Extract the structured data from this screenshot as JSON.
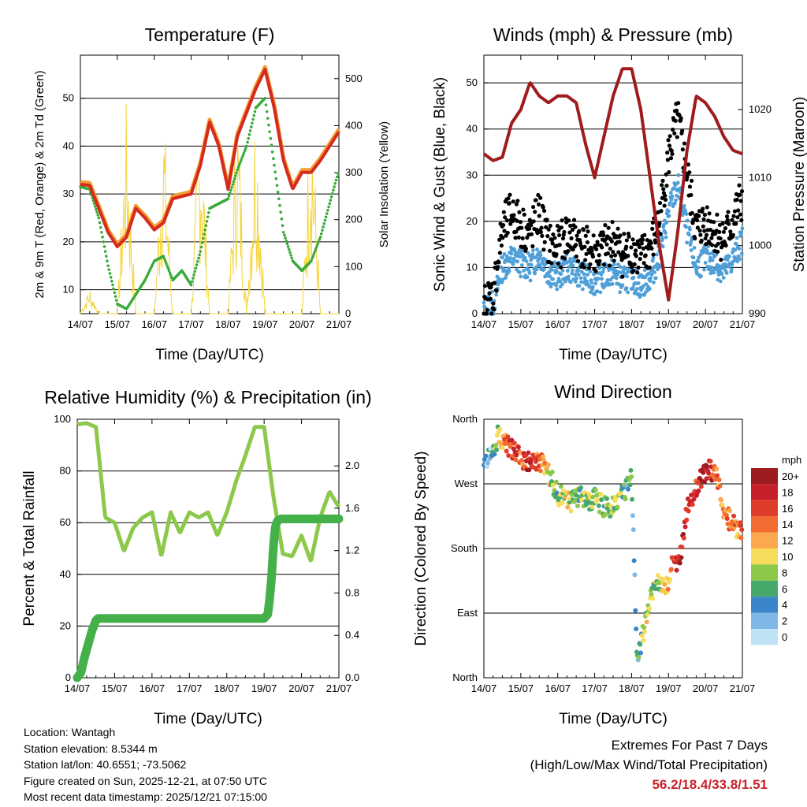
{
  "chart_data": [
    {
      "id": "temperature",
      "type": "line",
      "title": "Temperature (F)",
      "xlabel": "Time (Day/UTC)",
      "ylabel_left": "2m & 9m T (Red, Orange) & 2m Td (Green)",
      "ylabel_right": "Solar Insolation (Yellow)",
      "x_ticks": [
        "14/07",
        "15/07",
        "16/07",
        "17/07",
        "18/07",
        "19/07",
        "20/07",
        "21/07"
      ],
      "ylim_left": [
        5,
        59
      ],
      "ylim_right": [
        0,
        550
      ],
      "yticks_left": [
        10,
        20,
        30,
        40,
        50
      ],
      "yticks_right": [
        0,
        100,
        200,
        300,
        400,
        500
      ],
      "gridlines": [
        10,
        20,
        30,
        40,
        50
      ],
      "colors": {
        "t2m": "#d62a1f",
        "t9m": "#f39c2f",
        "td": "#3aaa3a",
        "solar": "#f5d53c"
      },
      "x": [
        0.0,
        0.25,
        0.5,
        0.75,
        1.0,
        1.25,
        1.5,
        1.75,
        2.0,
        2.25,
        2.5,
        2.75,
        3.0,
        3.25,
        3.5,
        3.75,
        4.0,
        4.25,
        4.5,
        4.75,
        5.0,
        5.25,
        5.5,
        5.75,
        6.0,
        6.25,
        6.5,
        6.75,
        7.0
      ],
      "series": [
        {
          "name": "2m T",
          "axis": "left",
          "values": [
            32,
            31.8,
            27,
            22,
            19,
            21,
            27,
            25,
            22.5,
            24,
            29,
            29.5,
            30,
            36,
            45,
            40,
            31,
            42,
            47,
            52,
            56,
            48,
            37,
            31,
            34.5,
            34.5,
            37,
            40,
            43
          ]
        },
        {
          "name": "9m T",
          "axis": "left",
          "values": [
            32.5,
            32.3,
            27.5,
            22.5,
            19.5,
            21.5,
            27.5,
            25.5,
            23,
            24.5,
            29.5,
            30,
            30.5,
            36.5,
            45.5,
            40.5,
            31.5,
            42.5,
            47.5,
            52.5,
            56.5,
            48.5,
            37.5,
            31.5,
            35,
            35,
            37.5,
            40.5,
            43.5
          ]
        },
        {
          "name": "2m Td",
          "axis": "left",
          "values": [
            31.5,
            31,
            25,
            15,
            7,
            6,
            9,
            12,
            16,
            17,
            12,
            14,
            11,
            18,
            27,
            28,
            29,
            35,
            40,
            48,
            50,
            36,
            22,
            16,
            14,
            16,
            21,
            28,
            35
          ]
        },
        {
          "name": "Solar",
          "axis": "right",
          "values": [
            0,
            60,
            0,
            0,
            0,
            470,
            0,
            0,
            0,
            470,
            0,
            0,
            0,
            500,
            0,
            0,
            0,
            490,
            0,
            500,
            0,
            0,
            0,
            0,
            0,
            520,
            0,
            0,
            0
          ]
        }
      ]
    },
    {
      "id": "winds",
      "type": "scatter",
      "title": "Winds (mph) & Pressure (mb)",
      "xlabel": "Time (Day/UTC)",
      "ylabel_left": "Sonic Wind & Gust (Blue, Black)",
      "ylabel_right": "Station Pressure (Maroon)",
      "x_ticks": [
        "14/07",
        "15/07",
        "16/07",
        "17/07",
        "18/07",
        "19/07",
        "20/07",
        "21/07"
      ],
      "ylim_left": [
        0,
        56
      ],
      "ylim_right": [
        990,
        1028
      ],
      "yticks_left": [
        0,
        10,
        20,
        30,
        40,
        50
      ],
      "yticks_right": [
        990,
        1000,
        1010,
        1020
      ],
      "gridlines": [
        10,
        20,
        30,
        40,
        50
      ],
      "colors": {
        "wind": "#4f9fd8",
        "gust": "#000000",
        "pressure": "#a01c1c"
      },
      "x": [
        0.0,
        0.25,
        0.5,
        0.75,
        1.0,
        1.25,
        1.5,
        1.75,
        2.0,
        2.25,
        2.5,
        2.75,
        3.0,
        3.25,
        3.5,
        3.75,
        4.0,
        4.25,
        4.5,
        4.75,
        5.0,
        5.25,
        5.5,
        5.75,
        6.0,
        6.25,
        6.5,
        6.75,
        7.0
      ],
      "series": [
        {
          "name": "Sonic Wind",
          "axis": "left",
          "values": [
            1,
            2,
            10,
            12,
            11,
            10,
            13,
            9,
            8,
            10,
            9,
            8,
            7,
            8,
            9,
            7,
            8,
            6,
            8,
            12,
            22,
            28,
            18,
            10,
            12,
            11,
            9,
            12,
            16
          ]
        },
        {
          "name": "Gust",
          "axis": "left",
          "values": [
            2,
            4,
            18,
            22,
            19,
            17,
            22,
            15,
            14,
            17,
            16,
            14,
            13,
            14,
            16,
            13,
            14,
            12,
            14,
            20,
            34,
            42,
            30,
            18,
            20,
            18,
            16,
            20,
            25
          ]
        },
        {
          "name": "Station Pressure",
          "axis": "right",
          "values": [
            1013.5,
            1012.5,
            1013,
            1018,
            1020,
            1024,
            1022,
            1021,
            1022,
            1022,
            1021,
            1015,
            1010,
            1016,
            1022,
            1026,
            1026,
            1020,
            1010,
            1000,
            992,
            1002,
            1014,
            1022,
            1021,
            1019,
            1016,
            1014,
            1013.5
          ]
        }
      ]
    },
    {
      "id": "humidity",
      "type": "line",
      "title": "Relative Humidity (%) & Precipitation (in)",
      "xlabel": "Time (Day/UTC)",
      "ylabel_left": "Percent & Total Rainfall",
      "x_ticks": [
        "14/07",
        "15/07",
        "16/07",
        "17/07",
        "18/07",
        "19/07",
        "20/07",
        "21/07"
      ],
      "ylim_left": [
        0,
        100
      ],
      "ylim_right": [
        0,
        2.44
      ],
      "yticks_left": [
        0,
        20,
        40,
        60,
        80,
        100
      ],
      "yticks_right": [
        "0.0",
        "0.4",
        "0.8",
        "1.2",
        "1.6",
        "2.0"
      ],
      "gridlines": [
        20,
        40,
        60,
        80
      ],
      "colors": {
        "rh": "#8cc94a",
        "precip": "#44b04a"
      },
      "series": [
        {
          "name": "Relative Humidity",
          "axis": "left",
          "x": [
            0.0,
            0.25,
            0.5,
            0.75,
            1.0,
            1.25,
            1.5,
            1.75,
            2.0,
            2.25,
            2.5,
            2.75,
            3.0,
            3.25,
            3.5,
            3.75,
            4.0,
            4.25,
            4.5,
            4.75,
            5.0,
            5.25,
            5.5,
            5.75,
            6.0,
            6.25,
            6.5,
            6.75,
            7.0
          ],
          "values": [
            98,
            98.5,
            97,
            62,
            60,
            49,
            58,
            62,
            64,
            47,
            64,
            56,
            64,
            62,
            64,
            55,
            64,
            76,
            86,
            97,
            97,
            70,
            48,
            47,
            55,
            45,
            62,
            72,
            66
          ]
        },
        {
          "name": "Total Precipitation",
          "axis": "right",
          "x": [
            0.0,
            0.1,
            0.2,
            0.4,
            0.5,
            0.55,
            5.0,
            5.1,
            5.15,
            5.2,
            5.25,
            5.3,
            5.35,
            5.45,
            7.0
          ],
          "values": [
            0.0,
            0.05,
            0.2,
            0.45,
            0.54,
            0.56,
            0.56,
            0.6,
            0.75,
            0.95,
            1.25,
            1.42,
            1.48,
            1.5,
            1.5
          ]
        }
      ]
    },
    {
      "id": "winddir",
      "type": "scatter",
      "title": "Wind Direction",
      "xlabel": "Time (Day/UTC)",
      "ylabel_left": "Direction (Colored By Speed)",
      "x_ticks": [
        "14/07",
        "15/07",
        "16/07",
        "17/07",
        "18/07",
        "19/07",
        "20/07",
        "21/07"
      ],
      "ylim_left": [
        0,
        360
      ],
      "yticks_left": [
        "North",
        "East",
        "South",
        "West",
        "North"
      ],
      "ytick_values": [
        0,
        90,
        180,
        270,
        360
      ],
      "gridlines": [
        90,
        180,
        270
      ],
      "legend_title": "mph",
      "legend_labels": [
        "20+",
        "18",
        "16",
        "14",
        "12",
        "10",
        "8",
        "6",
        "4",
        "2",
        "0"
      ],
      "legend_colors": [
        "#9b1b1e",
        "#c8202a",
        "#e03c2a",
        "#f26b30",
        "#fba94e",
        "#f7dc5b",
        "#8cc94a",
        "#46a86a",
        "#3a86c8",
        "#7fb8e6",
        "#bfe2f5"
      ],
      "x": [
        0.0,
        0.2,
        0.4,
        0.6,
        0.8,
        1.0,
        1.2,
        1.4,
        1.6,
        1.8,
        2.0,
        2.2,
        2.4,
        2.6,
        2.8,
        3.0,
        3.2,
        3.4,
        3.6,
        3.8,
        4.0,
        4.15,
        4.3,
        4.5,
        4.7,
        4.9,
        5.1,
        5.3,
        5.5,
        5.7,
        5.9,
        6.1,
        6.3,
        6.5,
        6.7,
        6.9
      ],
      "values": [
        300,
        310,
        340,
        325,
        315,
        305,
        300,
        305,
        295,
        280,
        255,
        250,
        245,
        255,
        245,
        250,
        240,
        235,
        250,
        255,
        280,
        20,
        60,
        110,
        140,
        120,
        155,
        160,
        235,
        255,
        280,
        290,
        285,
        235,
        215,
        205
      ],
      "speeds": [
        2,
        3,
        10,
        14,
        16,
        14,
        18,
        16,
        13,
        9,
        7,
        10,
        8,
        6,
        9,
        7,
        8,
        7,
        8,
        6,
        5,
        4,
        8,
        9,
        7,
        10,
        14,
        20,
        18,
        16,
        20,
        18,
        14,
        12,
        13,
        14
      ]
    }
  ],
  "info": {
    "location": "Location: Wantagh",
    "elevation": "Station elevation: 8.5344 m",
    "latlon": "Station lat/lon: 40.6551; -73.5062",
    "created": "Figure created on Sun, 2025-12-21, at 07:50 UTC",
    "recent": "Most recent data timestamp: 2025/12/21 07:15:00"
  },
  "extremes": {
    "heading": "Extremes For Past 7 Days",
    "subheading": "(High/Low/Max Wind/Total Precipitation)",
    "values": "56.2/18.4/33.8/1.51"
  }
}
